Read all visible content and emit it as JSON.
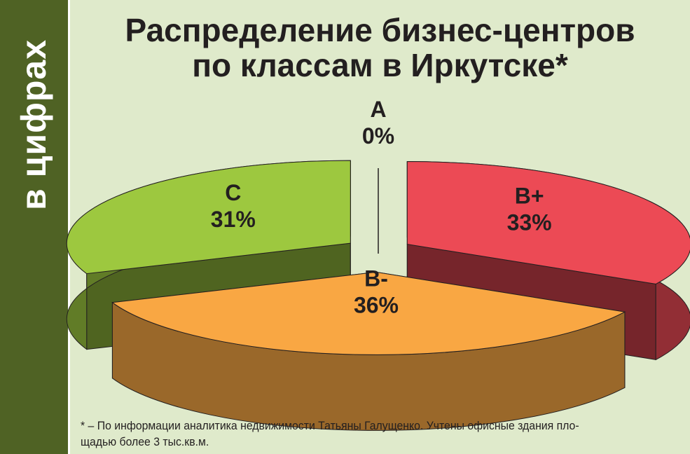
{
  "sidebar": {
    "label": "в цифрах"
  },
  "title_lines": [
    "Распределение бизнес-центров",
    "по классам в Иркутске*"
  ],
  "footnote_lines": [
    "* – По информации аналитика недвижимости Татьяны Галущенко. Учтены офисные здания пло-",
    "щадью более 3 тыс.кв.м."
  ],
  "chart_data": {
    "type": "pie",
    "title": "Распределение бизнес-центров по классам в Иркутске*",
    "slices": [
      {
        "name": "A",
        "value": 0,
        "label": "0%",
        "color": "#ffffff"
      },
      {
        "name": "B+",
        "value": 33,
        "label": "33%",
        "color": "#ec4a55"
      },
      {
        "name": "B-",
        "value": 36,
        "label": "36%",
        "color": "#f9a743"
      },
      {
        "name": "C",
        "value": 31,
        "label": "31%",
        "color": "#9dc83f"
      }
    ]
  }
}
